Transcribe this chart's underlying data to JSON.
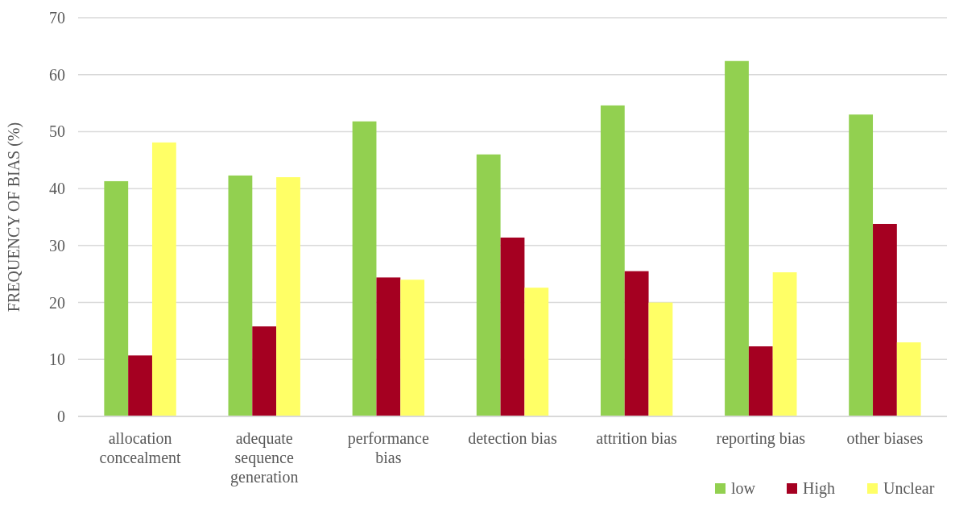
{
  "chart_data": {
    "type": "bar",
    "ylabel": "FREQUENCY OF BIAS (%)",
    "categories": [
      "allocation concealment",
      "adequate sequence generation",
      "performance bias",
      "detection bias",
      "attrition bias",
      "reporting bias",
      "other biases"
    ],
    "series": [
      {
        "name": "low",
        "color": "#92d050",
        "values": [
          41.3,
          42.3,
          51.8,
          46.0,
          54.6,
          62.4,
          53.0
        ]
      },
      {
        "name": "High",
        "color": "#a50021",
        "values": [
          10.7,
          15.8,
          24.4,
          31.4,
          25.5,
          12.3,
          33.8
        ]
      },
      {
        "name": "Unclear",
        "color": "#ffff66",
        "values": [
          48.1,
          42.0,
          24.0,
          22.6,
          20.0,
          25.3,
          13.0
        ]
      }
    ],
    "ylim": [
      0,
      70
    ],
    "yticks": [
      0,
      10,
      20,
      30,
      40,
      50,
      60,
      70
    ],
    "grid": "y",
    "legend": "bottom right"
  }
}
